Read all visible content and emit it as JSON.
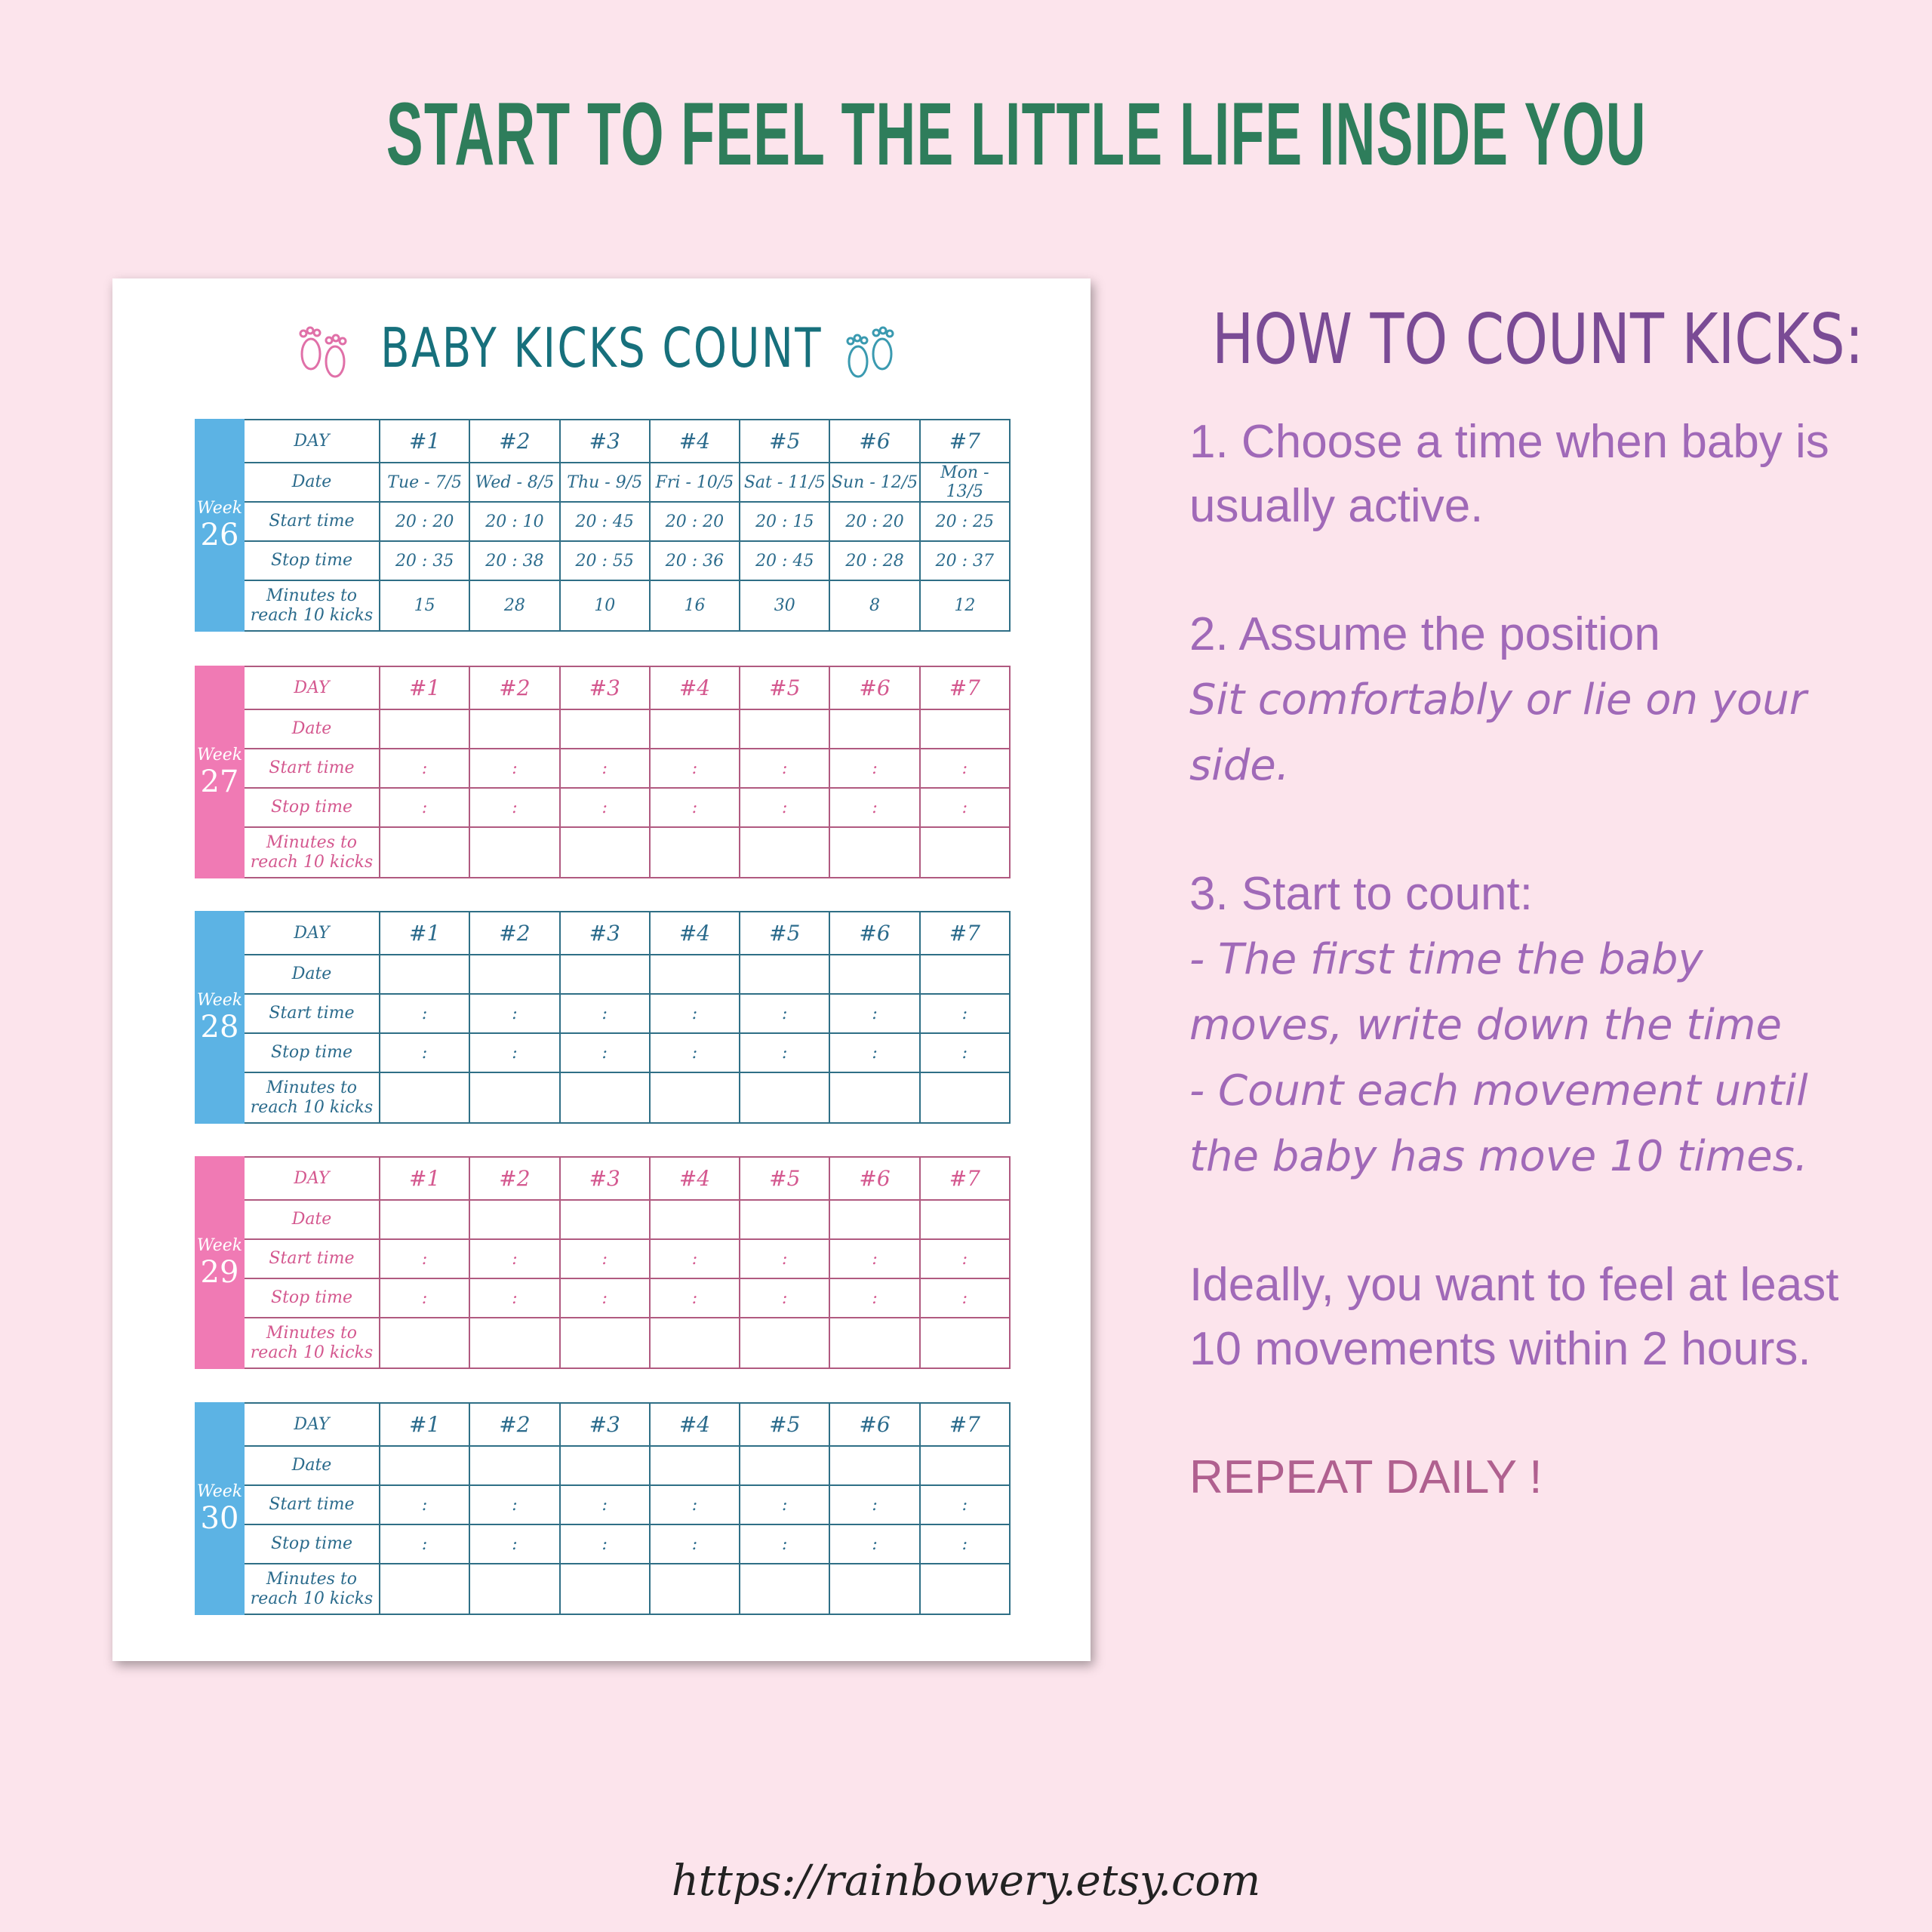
{
  "headline": "START TO FEEL THE LITTLE LIFE INSIDE YOU",
  "sheet": {
    "title": "BABY KICKS COUNT",
    "weeks": [
      {
        "label": "Week",
        "number": "26",
        "rows": [
          [
            "DAY",
            "#1",
            "#2",
            "#3",
            "#4",
            "#5",
            "#6",
            "#7"
          ],
          [
            "Date",
            "Tue - 7/5",
            "Wed - 8/5",
            "Thu - 9/5",
            "Fri - 10/5",
            "Sat - 11/5",
            "Sun - 12/5",
            "Mon - 13/5"
          ],
          [
            "Start time",
            "20 : 20",
            "20 : 10",
            "20 : 45",
            "20 : 20",
            "20 : 15",
            "20 : 20",
            "20 : 25"
          ],
          [
            "Stop time",
            "20 : 35",
            "20 : 38",
            "20 : 55",
            "20 : 36",
            "20 : 45",
            "20 : 28",
            "20 : 37"
          ],
          [
            "Minutes to reach 10 kicks",
            "15",
            "28",
            "10",
            "16",
            "30",
            "8",
            "12"
          ]
        ]
      },
      {
        "label": "Week",
        "number": "27",
        "rows": [
          [
            "DAY",
            "#1",
            "#2",
            "#3",
            "#4",
            "#5",
            "#6",
            "#7"
          ],
          [
            "Date"
          ],
          [
            "Start time",
            ":",
            ":",
            ":",
            ":",
            ":",
            ":",
            ":"
          ],
          [
            "Stop time",
            ":",
            ":",
            ":",
            ":",
            ":",
            ":",
            ":"
          ],
          [
            "Minutes to reach 10 kicks"
          ]
        ]
      },
      {
        "label": "Week",
        "number": "28",
        "rows": [
          [
            "DAY",
            "#1",
            "#2",
            "#3",
            "#4",
            "#5",
            "#6",
            "#7"
          ],
          [
            "Date"
          ],
          [
            "Start time",
            ":",
            ":",
            ":",
            ":",
            ":",
            ":",
            ":"
          ],
          [
            "Stop time",
            ":",
            ":",
            ":",
            ":",
            ":",
            ":",
            ":"
          ],
          [
            "Minutes to reach 10 kicks"
          ]
        ]
      },
      {
        "label": "Week",
        "number": "29",
        "rows": [
          [
            "DAY",
            "#1",
            "#2",
            "#3",
            "#4",
            "#5",
            "#6",
            "#7"
          ],
          [
            "Date"
          ],
          [
            "Start time",
            ":",
            ":",
            ":",
            ":",
            ":",
            ":",
            ":"
          ],
          [
            "Stop time",
            ":",
            ":",
            ":",
            ":",
            ":",
            ":",
            ":"
          ],
          [
            "Minutes to reach 10 kicks"
          ]
        ]
      },
      {
        "label": "Week",
        "number": "30",
        "rows": [
          [
            "DAY",
            "#1",
            "#2",
            "#3",
            "#4",
            "#5",
            "#6",
            "#7"
          ],
          [
            "Date"
          ],
          [
            "Start time",
            ":",
            ":",
            ":",
            ":",
            ":",
            ":",
            ":"
          ],
          [
            "Stop time",
            ":",
            ":",
            ":",
            ":",
            ":",
            ":",
            ":"
          ],
          [
            "Minutes to reach 10 kicks"
          ]
        ]
      }
    ]
  },
  "instructions": {
    "title": "HOW TO COUNT KICKS:",
    "step1": "1. Choose a time when baby is usually active.",
    "step2": {
      "heading": "2. Assume the position",
      "detail": "Sit comfortably or lie on your side."
    },
    "step3": {
      "heading": "3. Start to count:",
      "details": [
        "- The first time the baby moves, write down the time",
        "- Count each movement until the baby has move 10 times."
      ]
    },
    "ideal": "Ideally, you want to feel at least 10 movements within 2 hours.",
    "repeat": "REPEAT DAILY !"
  },
  "footer": "https://rainbowery.etsy.com"
}
